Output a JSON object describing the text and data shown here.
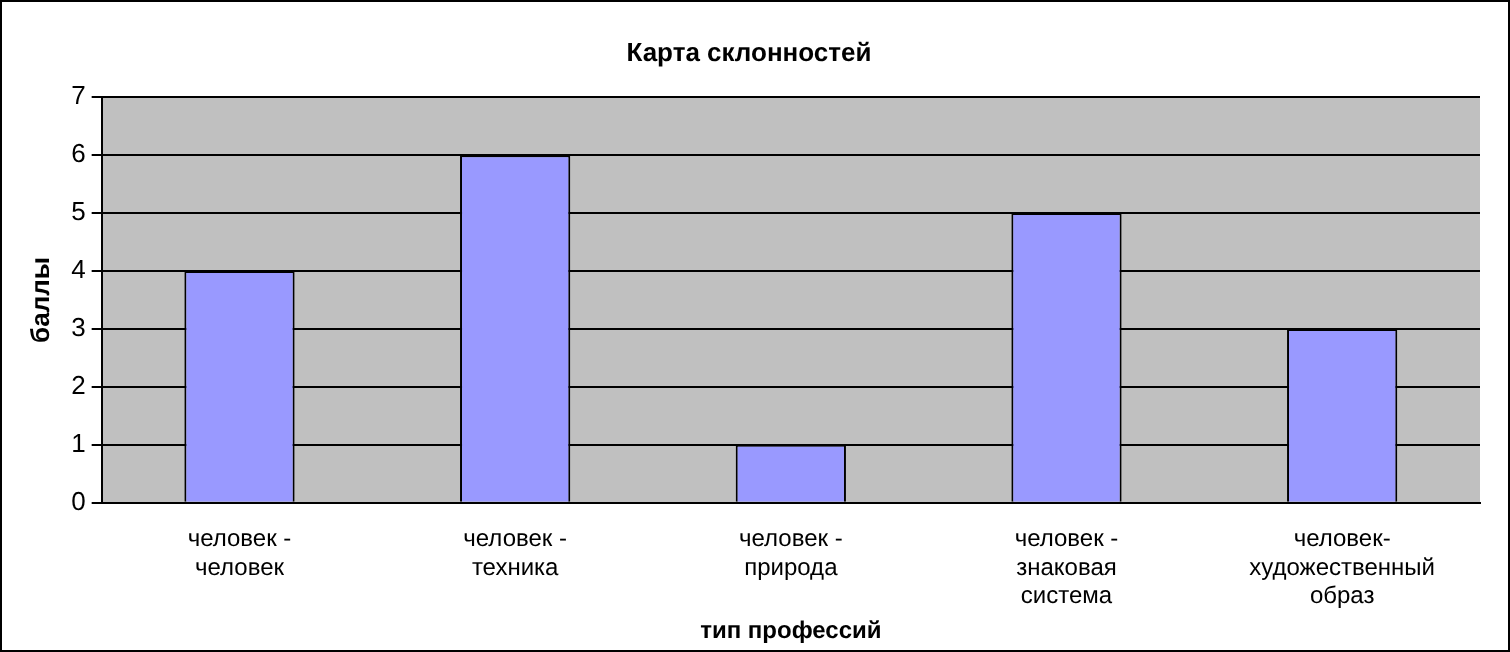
{
  "chart_data": {
    "type": "bar",
    "title": "Карта склонностей",
    "xlabel": "тип профессий",
    "ylabel": "баллы",
    "categories": [
      "человек - человек",
      "человек - техника",
      "человек - природа",
      "человек - знаковая система",
      "человек-художественный образ"
    ],
    "values": [
      4,
      6,
      1,
      5,
      3
    ],
    "color": "#9999ff",
    "ylim": [
      0,
      7
    ],
    "yticks": [
      0,
      1,
      2,
      3,
      4,
      5,
      6,
      7
    ],
    "grid": "y",
    "legend": false
  }
}
